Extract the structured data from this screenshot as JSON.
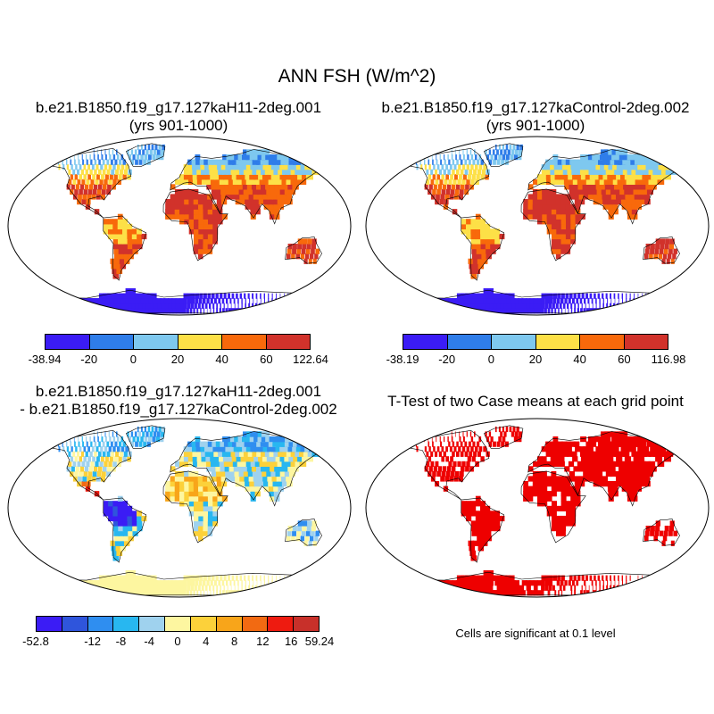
{
  "title": "ANN FSH (W/m^2)",
  "panels": {
    "top_left": {
      "line1": "b.e21.B1850.f19_g17.127kaH11-2deg.001",
      "line2": "(yrs 901-1000)"
    },
    "top_right": {
      "line1": "b.e21.B1850.f19_g17.127kaControl-2deg.002",
      "line2": "(yrs 901-1000)"
    },
    "bottom_left": {
      "line1": "b.e21.B1850.f19_g17.127kaH11-2deg.001",
      "line2": "- b.e21.B1850.f19_g17.127kaControl-2deg.002"
    },
    "bottom_right": {
      "line1": "T-Test of two Case means at each grid point"
    }
  },
  "colorbars": {
    "top_left": {
      "colors": [
        "#3b1cf5",
        "#2f7de9",
        "#7ec8ef",
        "#fde047",
        "#f8690b",
        "#d1322b"
      ],
      "labels": [
        "-38.94",
        "-20",
        "0",
        "20",
        "40",
        "60",
        "122.64"
      ]
    },
    "top_right": {
      "colors": [
        "#3b1cf5",
        "#2f7de9",
        "#7ec8ef",
        "#fde047",
        "#f8690b",
        "#d1322b"
      ],
      "labels": [
        "-38.19",
        "-20",
        "0",
        "20",
        "40",
        "60",
        "116.98"
      ]
    },
    "bottom_left": {
      "colors": [
        "#3b1cf5",
        "#2f55dc",
        "#2f8ef0",
        "#28b7f0",
        "#9fd2ee",
        "#fdf6a0",
        "#fcd13a",
        "#f8a51a",
        "#f26a12",
        "#ee1b10",
        "#c8302a"
      ],
      "labels": [
        "-52.8",
        "",
        "-12",
        "-8",
        "-4",
        "0",
        "4",
        "8",
        "12",
        "16",
        "59.24"
      ]
    }
  },
  "significance_note": "Cells are significant at 0.1 level",
  "colors": {
    "ocean": "#ffffff",
    "outline": "#000000",
    "significant": "#ee0000"
  }
}
